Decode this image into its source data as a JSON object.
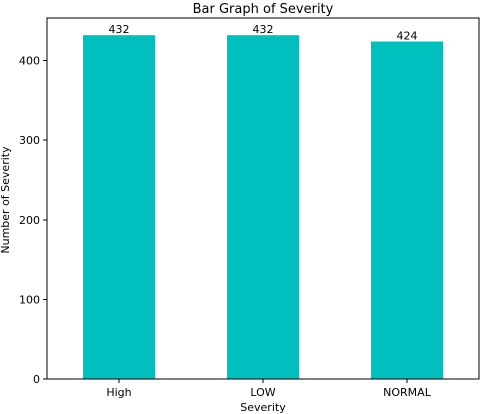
{
  "chart_data": {
    "type": "bar",
    "title": "Bar Graph of Severity",
    "xlabel": "Severity",
    "ylabel": "Number of Severity",
    "categories": [
      "High",
      "LOW",
      "NORMAL"
    ],
    "values": [
      432,
      432,
      424
    ],
    "data_labels": [
      "432",
      "432",
      "424"
    ],
    "ylim": [
      0,
      453.6
    ],
    "yticks": [
      0,
      100,
      200,
      300,
      400
    ],
    "bar_color": "#00bfbf",
    "grid": false,
    "legend": "none"
  }
}
